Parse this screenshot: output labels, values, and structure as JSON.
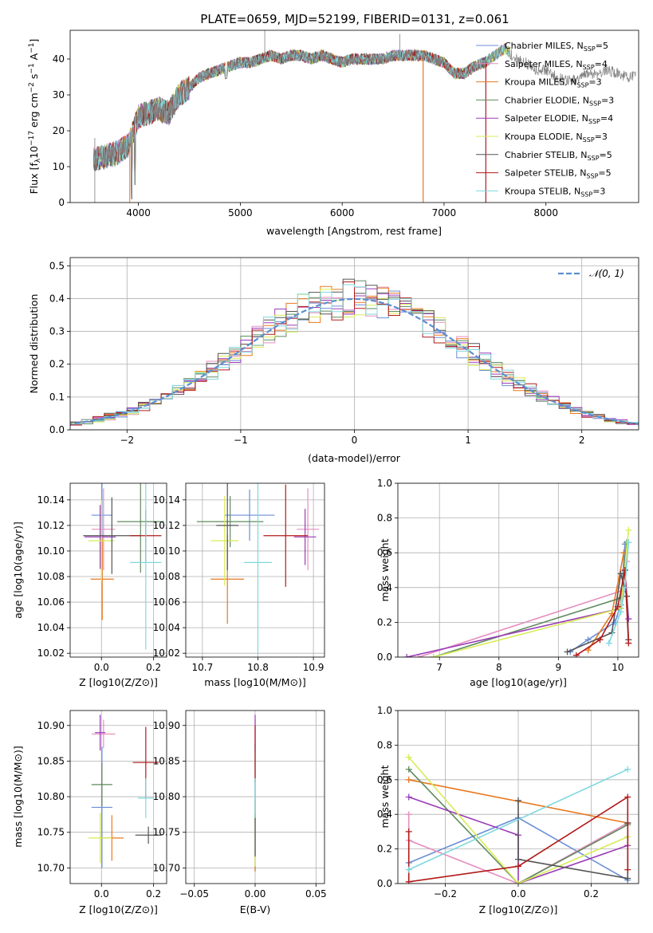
{
  "figure": {
    "title": "PLATE=0659, MJD=52199, FIBERID=0131, z=0.061"
  },
  "colors": {
    "Chabrier MILES": "#6a8fd6",
    "Salpeter MILES": "#e58fc0",
    "Kroupa MILES": "#e8781f",
    "Chabrier ELODIE": "#5f8a5e",
    "Salpeter ELODIE": "#9b3ab8",
    "Kroupa ELODIE": "#d7ec55",
    "Chabrier STELIB": "#555555",
    "Salpeter STELIB": "#b21a1a",
    "Kroupa STELIB": "#7fd8de",
    "gaussian": "#5b8fd0",
    "data": "#808080"
  },
  "models": [
    {
      "lib": "Chabrier MILES",
      "legend": "Chabrier MILES, N",
      "sub": "SSP",
      "eq": "=5"
    },
    {
      "lib": "Salpeter MILES",
      "legend": "Salpeter MILES, N",
      "sub": "SSP",
      "eq": "=4"
    },
    {
      "lib": "Kroupa MILES",
      "legend": "Kroupa MILES, N",
      "sub": "SSP",
      "eq": "=3"
    },
    {
      "lib": "Chabrier ELODIE",
      "legend": "Chabrier ELODIE, N",
      "sub": "SSP",
      "eq": "=3"
    },
    {
      "lib": "Salpeter ELODIE",
      "legend": "Salpeter ELODIE, N",
      "sub": "SSP",
      "eq": "=4"
    },
    {
      "lib": "Kroupa ELODIE",
      "legend": "Kroupa ELODIE, N",
      "sub": "SSP",
      "eq": "=3"
    },
    {
      "lib": "Chabrier STELIB",
      "legend": "Chabrier STELIB, N",
      "sub": "SSP",
      "eq": "=5"
    },
    {
      "lib": "Salpeter STELIB",
      "legend": "Salpeter STELIB, N",
      "sub": "SSP",
      "eq": "=5"
    },
    {
      "lib": "Kroupa STELIB",
      "legend": "Kroupa STELIB, N",
      "sub": "SSP",
      "eq": "=3"
    }
  ],
  "chart_data": [
    {
      "id": "spectrum",
      "type": "line",
      "xlabel": "wavelength [Angstrom, rest frame]",
      "ylabel": "Flux [f_λ 10^-17 erg cm^-2 s^-1 A^-1]",
      "ylabel_parts": {
        "a": "Flux [f",
        "asub": "λ",
        "b": "10",
        "bsup": "−17",
        "c": " erg cm",
        "csup": "−2",
        "d": " s",
        "dsup": "−1",
        "e": " A",
        "esup": "−1",
        "f": "]"
      },
      "xlim": [
        3330,
        8910
      ],
      "ylim": [
        0,
        48
      ],
      "xticks": [
        4000,
        5000,
        6000,
        7000,
        8000
      ],
      "yticks": [
        0,
        10,
        20,
        30,
        40
      ],
      "continuum_knots": [
        [
          3560,
          12
        ],
        [
          3700,
          13
        ],
        [
          3800,
          14
        ],
        [
          3900,
          16
        ],
        [
          3950,
          20
        ],
        [
          4000,
          24
        ],
        [
          4100,
          25
        ],
        [
          4200,
          26
        ],
        [
          4300,
          25
        ],
        [
          4400,
          30
        ],
        [
          4500,
          32
        ],
        [
          4600,
          35
        ],
        [
          4700,
          36
        ],
        [
          4800,
          37
        ],
        [
          4900,
          38
        ],
        [
          5000,
          39
        ],
        [
          5100,
          39
        ],
        [
          5200,
          40
        ],
        [
          5300,
          41
        ],
        [
          5400,
          40
        ],
        [
          5500,
          41
        ],
        [
          5600,
          41
        ],
        [
          5700,
          40
        ],
        [
          5800,
          41
        ],
        [
          5900,
          40
        ],
        [
          6000,
          39
        ],
        [
          6100,
          40
        ],
        [
          6200,
          40
        ],
        [
          6300,
          40
        ],
        [
          6400,
          40
        ],
        [
          6500,
          41
        ],
        [
          6600,
          41
        ],
        [
          6700,
          41
        ],
        [
          6800,
          41
        ],
        [
          6900,
          40
        ],
        [
          7000,
          39
        ],
        [
          7100,
          36
        ],
        [
          7200,
          36
        ],
        [
          7300,
          38
        ],
        [
          7400,
          39
        ],
        [
          7500,
          41
        ],
        [
          7600,
          43
        ],
        [
          7700,
          40
        ],
        [
          7800,
          39
        ],
        [
          7900,
          37
        ],
        [
          8000,
          37
        ],
        [
          8100,
          35
        ],
        [
          8200,
          34
        ],
        [
          8300,
          34
        ],
        [
          8400,
          36
        ],
        [
          8500,
          36
        ],
        [
          8600,
          37
        ],
        [
          8700,
          36
        ],
        [
          8800,
          35
        ]
      ],
      "model_ends": [
        7640,
        7440,
        7640,
        7640,
        7640,
        7640,
        7440,
        7440,
        7640
      ]
    },
    {
      "id": "residuals",
      "type": "histogram",
      "xlabel": "(data-model)/error",
      "ylabel": "Normed distribution",
      "xlim": [
        -2.5,
        2.5
      ],
      "ylim": [
        0,
        0.525
      ],
      "xticks": [
        -2,
        -1,
        0,
        1,
        2
      ],
      "yticks": [
        0.0,
        0.1,
        0.2,
        0.3,
        0.4,
        0.5
      ],
      "bin_width": 0.1,
      "legend": {
        "label": "𝒩(0, 1)"
      }
    },
    {
      "id": "age-vs-Z",
      "type": "errorbar",
      "xlabel": "Z [log10(Z/Z⊙)]",
      "ylabel": "age [log10(age/yr)]",
      "xlim": [
        -0.12,
        0.25
      ],
      "ylim": [
        10.017,
        10.153
      ],
      "xticks": [
        0.0,
        0.2
      ],
      "yticks": [
        10.02,
        10.04,
        10.06,
        10.08,
        10.1,
        10.12,
        10.14
      ],
      "points": [
        {
          "x": 0.002,
          "y": 10.128,
          "xerr": 0.04,
          "yerr": 0.038
        },
        {
          "x": 0.008,
          "y": 10.117,
          "xerr": 0.045,
          "yerr": 0.032
        },
        {
          "x": 0.003,
          "y": 10.078,
          "xerr": 0.045,
          "yerr": 0.032
        },
        {
          "x": 0.15,
          "y": 10.123,
          "xerr": 0.09,
          "yerr": 0.04
        },
        {
          "x": -0.005,
          "y": 10.111,
          "xerr": 0.06,
          "yerr": 0.025
        },
        {
          "x": 0.0,
          "y": 10.108,
          "xerr": 0.05,
          "yerr": 0.032
        },
        {
          "x": 0.04,
          "y": 10.112,
          "xerr": 0.11,
          "yerr": 0.03
        },
        {
          "x": 0.17,
          "y": 10.112,
          "xerr": 0.06,
          "yerr": 0.02
        },
        {
          "x": 0.17,
          "y": 10.091,
          "xerr": 0.06,
          "yerr": 0.068
        }
      ]
    },
    {
      "id": "age-vs-mass",
      "type": "errorbar",
      "xlabel": "mass [log10(M/M⊙)]",
      "ylabel": "",
      "xlim": [
        10.67,
        10.92
      ],
      "ylim": [
        10.017,
        10.153
      ],
      "xticks": [
        10.7,
        10.8,
        10.9
      ],
      "yticks": [
        10.02,
        10.04,
        10.06,
        10.08,
        10.1,
        10.12,
        10.14
      ],
      "points": [
        {
          "x": 10.785,
          "y": 10.128,
          "xerr": 0.045,
          "yerr": 0.02
        },
        {
          "x": 10.89,
          "y": 10.117,
          "xerr": 0.02,
          "yerr": 0.032
        },
        {
          "x": 10.745,
          "y": 10.078,
          "xerr": 0.03,
          "yerr": 0.035
        },
        {
          "x": 10.75,
          "y": 10.123,
          "xerr": 0.06,
          "yerr": 0.02
        },
        {
          "x": 10.885,
          "y": 10.111,
          "xerr": 0.02,
          "yerr": 0.022
        },
        {
          "x": 10.74,
          "y": 10.108,
          "xerr": 0.025,
          "yerr": 0.035
        },
        {
          "x": 10.745,
          "y": 10.12,
          "xerr": 0.02,
          "yerr": 0.035
        },
        {
          "x": 10.85,
          "y": 10.112,
          "xerr": 0.04,
          "yerr": 0.04
        },
        {
          "x": 10.8,
          "y": 10.091,
          "xerr": 0.025,
          "yerr": 0.07
        }
      ]
    },
    {
      "id": "mass-weight-vs-age",
      "type": "line",
      "xlabel": "age [log10(age/yr)]",
      "ylabel": "mass weight",
      "xlim": [
        6.3,
        10.35
      ],
      "ylim": [
        0,
        1
      ],
      "xticks": [
        7,
        8,
        9,
        10
      ],
      "yticks": [
        0.0,
        0.2,
        0.4,
        0.6,
        0.8,
        1.0
      ],
      "series": [
        {
          "x": [
            9.2,
            9.5,
            9.95,
            10.05,
            10.12
          ],
          "y": [
            0.03,
            0.1,
            0.2,
            0.3,
            0.65
          ]
        },
        {
          "x": [
            6.65,
            10.05,
            10.15
          ],
          "y": [
            0.0,
            0.38,
            0.55
          ]
        },
        {
          "x": [
            9.5,
            9.9,
            10.1
          ],
          "y": [
            0.04,
            0.25,
            0.6
          ]
        },
        {
          "x": [
            6.9,
            10.05,
            10.15
          ],
          "y": [
            0.0,
            0.34,
            0.66
          ]
        },
        {
          "x": [
            6.45,
            10.05,
            10.12,
            10.18
          ],
          "y": [
            0.0,
            0.28,
            0.5,
            0.22
          ]
        },
        {
          "x": [
            6.9,
            10.05,
            10.18
          ],
          "y": [
            0.0,
            0.28,
            0.73
          ]
        },
        {
          "x": [
            9.15,
            9.9,
            10.05,
            10.15,
            10.18
          ],
          "y": [
            0.03,
            0.14,
            0.48,
            0.35,
            0.1
          ]
        },
        {
          "x": [
            9.3,
            9.7,
            10.0,
            10.12,
            10.18
          ],
          "y": [
            0.01,
            0.1,
            0.29,
            0.5,
            0.08
          ]
        },
        {
          "x": [
            9.85,
            10.05,
            10.12,
            10.18
          ],
          "y": [
            0.08,
            0.26,
            0.4,
            0.66
          ]
        }
      ]
    },
    {
      "id": "mass-vs-Z",
      "type": "errorbar",
      "xlabel": "Z [log10(Z/Z⊙)]",
      "ylabel": "mass [log10(M/M⊙)]",
      "xlim": [
        -0.12,
        0.25
      ],
      "ylim": [
        10.678,
        10.921
      ],
      "xticks": [
        0.0,
        0.2
      ],
      "yticks": [
        10.7,
        10.75,
        10.8,
        10.85,
        10.9
      ],
      "points": [
        {
          "x": 0.002,
          "y": 10.785,
          "xerr": 0.04,
          "yerr": 0.085
        },
        {
          "x": 0.008,
          "y": 10.888,
          "xerr": 0.045,
          "yerr": 0.02
        },
        {
          "x": 0.04,
          "y": 10.742,
          "xerr": 0.045,
          "yerr": 0.032
        },
        {
          "x": 0.002,
          "y": 10.817,
          "xerr": 0.04,
          "yerr": 0.03
        },
        {
          "x": -0.005,
          "y": 10.89,
          "xerr": 0.02,
          "yerr": 0.025
        },
        {
          "x": -0.005,
          "y": 10.742,
          "xerr": 0.045,
          "yerr": 0.035
        },
        {
          "x": 0.18,
          "y": 10.746,
          "xerr": 0.05,
          "yerr": 0.012
        },
        {
          "x": 0.17,
          "y": 10.848,
          "xerr": 0.05,
          "yerr": 0.05
        },
        {
          "x": 0.17,
          "y": 10.798,
          "xerr": 0.03,
          "yerr": 0.028
        }
      ]
    },
    {
      "id": "mass-vs-EBV",
      "type": "errorbar",
      "xlabel": "E(B-V)",
      "ylabel": "",
      "xlim": [
        -0.057,
        0.057
      ],
      "ylim": [
        10.678,
        10.921
      ],
      "xticks": [
        -0.05,
        0.0,
        0.05
      ],
      "yticks": [
        10.7,
        10.75,
        10.8,
        10.85,
        10.9
      ],
      "points": [
        {
          "x": 0.0,
          "y": 10.785,
          "xerr": 0,
          "yerr": 0.09
        },
        {
          "x": 0.0,
          "y": 10.888,
          "xerr": 0,
          "yerr": 0.02
        },
        {
          "x": 0.0,
          "y": 10.745,
          "xerr": 0,
          "yerr": 0.05
        },
        {
          "x": 0.0,
          "y": 10.817,
          "xerr": 0,
          "yerr": 0.05
        },
        {
          "x": 0.0,
          "y": 10.89,
          "xerr": 0,
          "yerr": 0.025
        },
        {
          "x": 0.0,
          "y": 10.742,
          "xerr": 0,
          "yerr": 0.04
        },
        {
          "x": 0.0,
          "y": 10.746,
          "xerr": 0,
          "yerr": 0.03
        },
        {
          "x": 0.0,
          "y": 10.86,
          "xerr": 0,
          "yerr": 0.04
        },
        {
          "x": 0.0,
          "y": 10.798,
          "xerr": 0,
          "yerr": 0.028
        }
      ]
    },
    {
      "id": "mass-weight-vs-Z",
      "type": "line",
      "xlabel": "Z [log10(Z/Z⊙)]",
      "ylabel": "mass weight",
      "xlim": [
        -0.33,
        0.33
      ],
      "ylim": [
        0,
        1
      ],
      "xticks": [
        -0.2,
        0.0,
        0.2
      ],
      "yticks": [
        0.0,
        0.2,
        0.4,
        0.6,
        0.8,
        1.0
      ],
      "series": [
        {
          "x": [
            -0.3,
            0.0,
            0.3
          ],
          "y": [
            0.12,
            0.38,
            0.02
          ]
        },
        {
          "x": [
            -0.3,
            -0.3,
            0.0,
            0.3
          ],
          "y": [
            0.4,
            0.25,
            0.0,
            0.35
          ]
        },
        {
          "x": [
            -0.3,
            0.3
          ],
          "y": [
            0.6,
            0.35
          ]
        },
        {
          "x": [
            -0.3,
            0.0,
            0.3
          ],
          "y": [
            0.66,
            0.0,
            0.34
          ]
        },
        {
          "x": [
            -0.3,
            0.0,
            0.0,
            0.3
          ],
          "y": [
            0.5,
            0.28,
            0.0,
            0.22
          ]
        },
        {
          "x": [
            -0.3,
            0.0,
            0.3
          ],
          "y": [
            0.73,
            0.0,
            0.27
          ]
        },
        {
          "x": [
            0.0,
            0.0,
            0.3,
            0.3
          ],
          "y": [
            0.48,
            0.14,
            0.03,
            0.35
          ]
        },
        {
          "x": [
            -0.3,
            -0.3,
            0.0,
            0.3,
            0.3
          ],
          "y": [
            0.3,
            0.01,
            0.1,
            0.5,
            0.08
          ]
        },
        {
          "x": [
            -0.3,
            0.3
          ],
          "y": [
            0.08,
            0.66
          ]
        }
      ]
    }
  ]
}
